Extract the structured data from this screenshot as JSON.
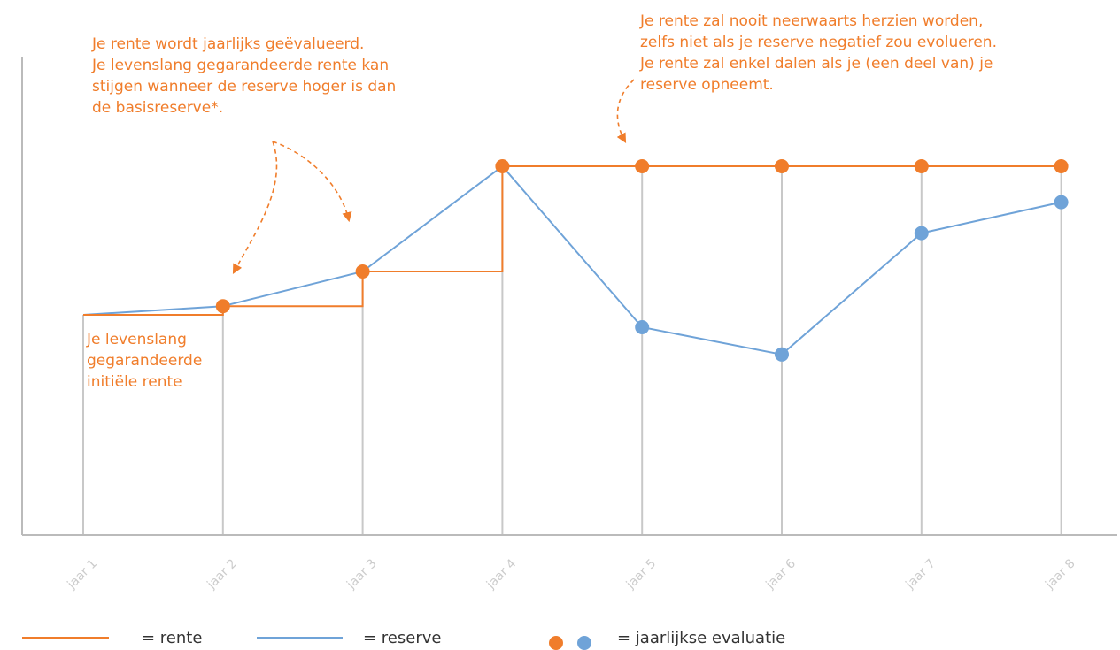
{
  "chart_data": {
    "type": "line",
    "title": "",
    "xlabel": "",
    "ylabel": "",
    "categories": [
      "jaar 1",
      "jaar 2",
      "jaar 3",
      "jaar 4",
      "jaar 5",
      "jaar 6",
      "jaar 7",
      "jaar 8"
    ],
    "ylim": [
      0,
      100
    ],
    "grid": "vertical",
    "legend_position": "bottom",
    "series": [
      {
        "name": "rente",
        "color": "#f07d2b",
        "shape": "step",
        "values": [
          40,
          43.5,
          57.5,
          100,
          100,
          100,
          100,
          100
        ]
      },
      {
        "name": "reserve",
        "color": "#6fa3d8",
        "shape": "line",
        "values": [
          40,
          43.5,
          57.5,
          100,
          35,
          24,
          73,
          85.5
        ]
      }
    ],
    "markers": {
      "rente": [
        false,
        true,
        true,
        true,
        true,
        true,
        true,
        true
      ],
      "reserve": [
        false,
        false,
        false,
        false,
        true,
        true,
        true,
        true
      ]
    },
    "annotations": [
      {
        "id": "initial",
        "text": "Je levenslang\ngegarandeerde\ninitiële rente"
      },
      {
        "id": "evaluated",
        "text": "Je rente wordt jaarlijks geëvalueerd.\nJe levenslang gegarandeerde rente kan\nstijgen wanneer de reserve hoger is dan\nde basisreserve*."
      },
      {
        "id": "never-down",
        "text": "Je rente zal nooit neerwaarts herzien worden,\nzelfs niet als je reserve negatief zou evolueren.\nJe rente zal enkel dalen als je (een deel van) je\nreserve opneemt."
      }
    ],
    "legend": [
      {
        "label": "= rente",
        "swatch": "line",
        "color": "#f07d2b"
      },
      {
        "label": "= reserve",
        "swatch": "line",
        "color": "#6fa3d8"
      },
      {
        "label": "= jaarlijkse evaluatie",
        "swatch": "dots",
        "colors": [
          "#f07d2b",
          "#6fa3d8"
        ]
      }
    ],
    "colors": {
      "axis": "#bbbbbb",
      "grid": "#c8c8c8",
      "tick_label": "#cccccc"
    }
  }
}
